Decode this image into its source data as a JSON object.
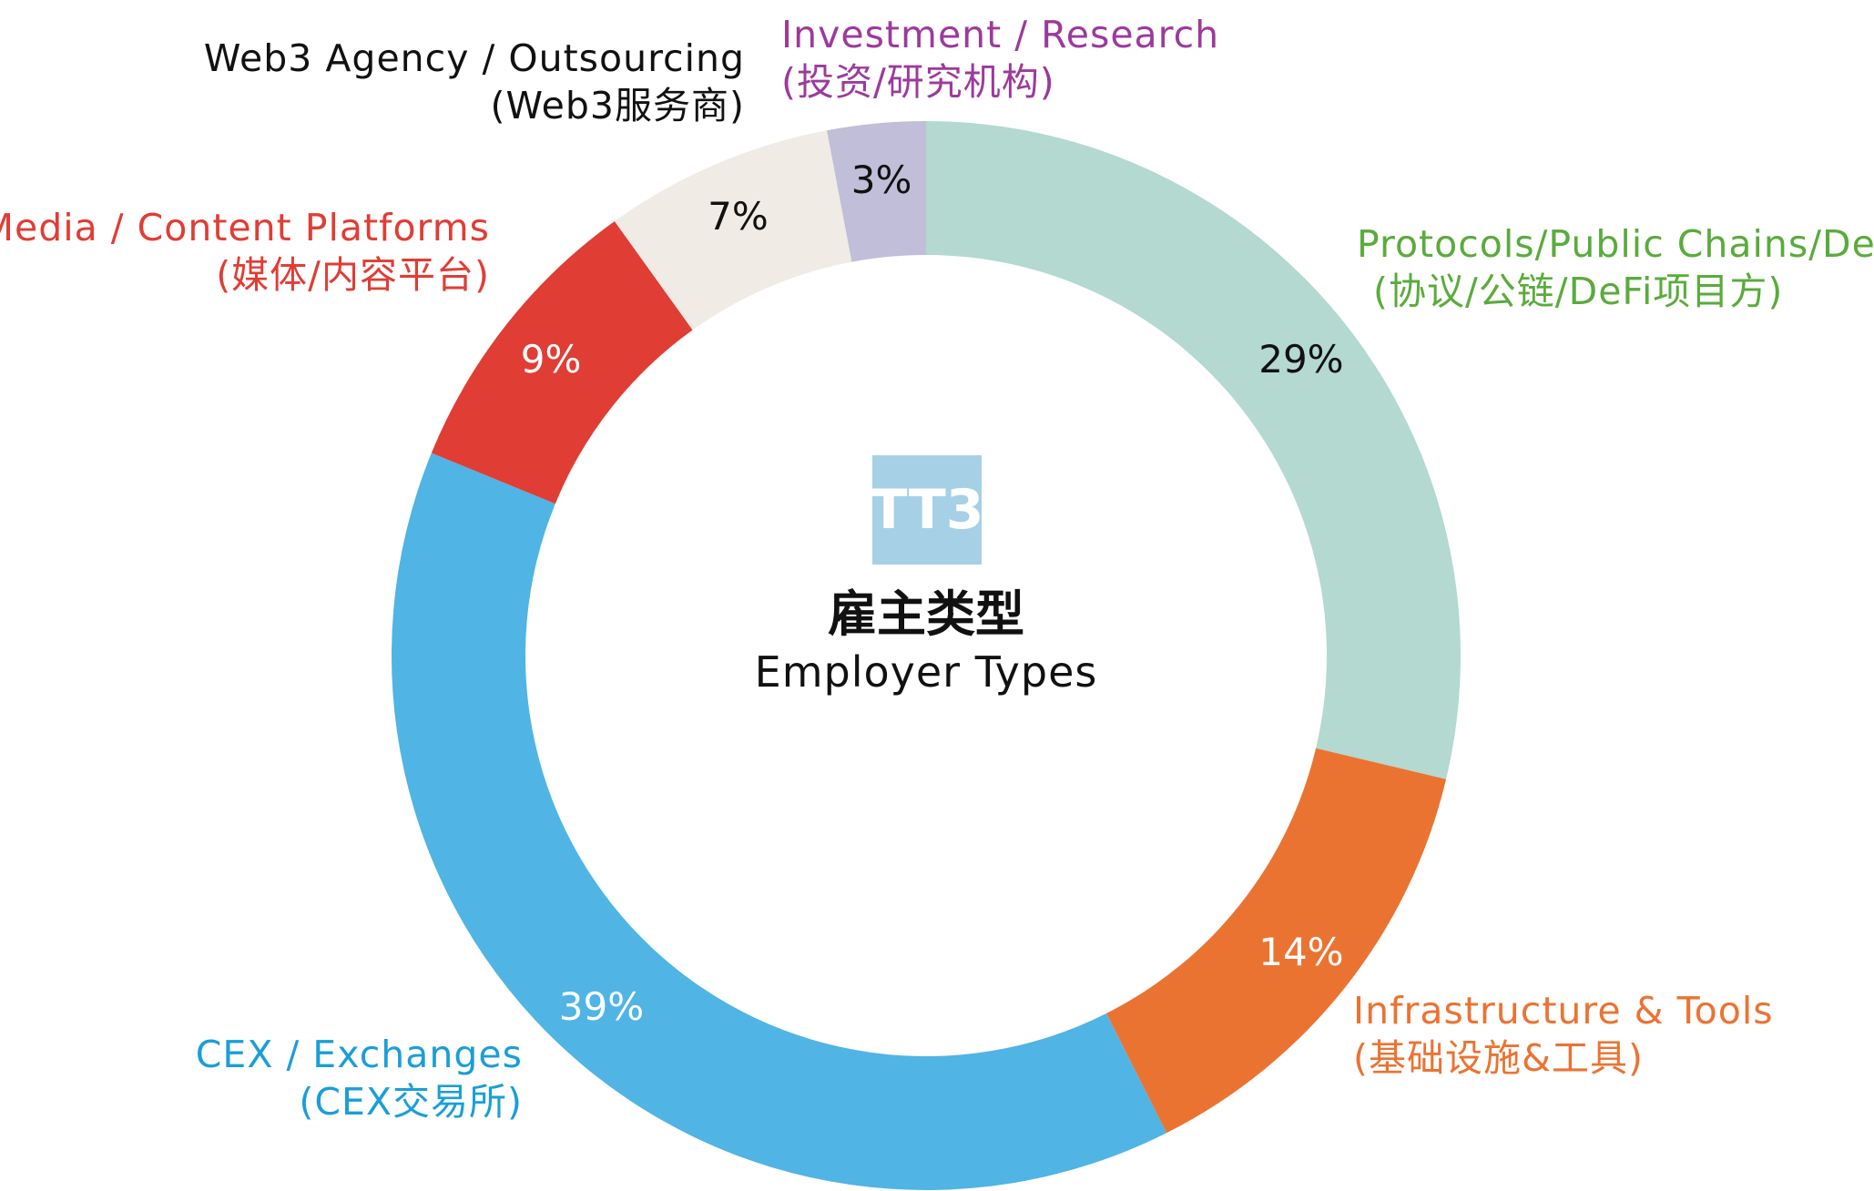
{
  "chart_data": {
    "type": "pie",
    "variant": "donut",
    "title": "雇主类型",
    "subtitle": "Employer Types",
    "legend": "none",
    "start_angle_deg": 0,
    "direction": "clockwise",
    "slices": [
      {
        "label_en": "Protocols/Public Chains/DeFi",
        "label_zh": "(协议/公链/DeFi项目方)",
        "value": 29,
        "value_label": "29%",
        "color": "#b3d9d1",
        "label_color": "#5aab3c",
        "value_color": "#111111"
      },
      {
        "label_en": "Infrastructure & Tools",
        "label_zh": "(基础设施&工具)",
        "value": 14,
        "value_label": "14%",
        "color": "#eb7332",
        "label_color": "#eb7332",
        "value_color": "#ffffff"
      },
      {
        "label_en": "CEX / Exchanges",
        "label_zh": "(CEX交易所)",
        "value": 39,
        "value_label": "39%",
        "color": "#50b4e4",
        "label_color": "#1a9ed8",
        "value_color": "#ffffff"
      },
      {
        "label_en": "Media / Content Platforms",
        "label_zh": "(媒体/内容平台)",
        "value": 9,
        "value_label": "9%",
        "color": "#e03d35",
        "label_color": "#e03d35",
        "value_color": "#ffffff"
      },
      {
        "label_en": "Web3 Agency / Outsourcing",
        "label_zh": "(Web3服务商)",
        "value": 7,
        "value_label": "7%",
        "color": "#f0ebe4",
        "label_color": "#111111",
        "value_color": "#111111"
      },
      {
        "label_en": "Investment / Research",
        "label_zh": "(投资/研究机构)",
        "value": 3,
        "value_label": "3%",
        "color": "#c0bed8",
        "label_color": "#9c3a9c",
        "value_color": "#111111"
      }
    ]
  },
  "logo": {
    "text": "TT3",
    "color": "#a6d0e6"
  }
}
